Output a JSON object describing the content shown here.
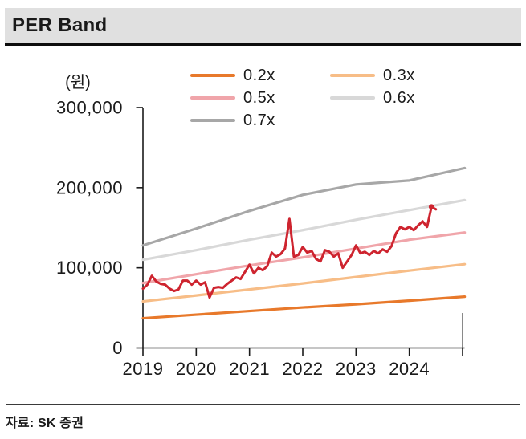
{
  "header": {
    "title": "PER Band"
  },
  "footer": {
    "source": "자료: SK 증권"
  },
  "chart_data": {
    "type": "line",
    "title": "PER Band",
    "unit_label": "(원)",
    "xlabel": "",
    "ylabel": "(원)",
    "ylim": [
      0,
      300000
    ],
    "xlim": [
      2019,
      2025
    ],
    "grid": false,
    "legend_position": "top-center",
    "y_ticks": [
      0,
      100000,
      200000,
      300000
    ],
    "y_tick_labels": [
      "0",
      "100,000",
      "200,000",
      "300,000"
    ],
    "x_ticks": [
      2019,
      2020,
      2021,
      2022,
      2023,
      2024,
      2025
    ],
    "x_tick_labels": [
      "2019",
      "2020",
      "2021",
      "2022",
      "2023",
      "2024",
      ""
    ],
    "band_x": [
      2019,
      2020,
      2021,
      2022,
      2023,
      2024,
      2025.04
    ],
    "bands": [
      {
        "name": "0.2x",
        "color": "#E8792B",
        "values": [
          37000,
          41500,
          46000,
          50500,
          54500,
          59000,
          64000
        ]
      },
      {
        "name": "0.3x",
        "color": "#F7BD87",
        "values": [
          58000,
          65500,
          73000,
          80500,
          88500,
          96500,
          104500
        ]
      },
      {
        "name": "0.5x",
        "color": "#F0A5AA",
        "values": [
          81000,
          92000,
          103000,
          113000,
          124000,
          135000,
          144000
        ]
      },
      {
        "name": "0.6x",
        "color": "#D8D8D8",
        "values": [
          110000,
          122000,
          135000,
          147000,
          160000,
          172000,
          184500
        ]
      },
      {
        "name": "0.7x",
        "color": "#A7A7A7",
        "values": [
          128000,
          149000,
          171000,
          191000,
          204000,
          209000,
          224500
        ]
      }
    ],
    "price_series": {
      "name": "price",
      "color": "#CE242F",
      "x_start": 2019,
      "x_step": 0.0833333,
      "marker_index": 65,
      "values": [
        74000,
        79000,
        90000,
        83000,
        80000,
        79000,
        74000,
        71000,
        73000,
        84000,
        84000,
        79000,
        84000,
        79000,
        82000,
        63000,
        75000,
        76000,
        75000,
        80000,
        84000,
        88000,
        86000,
        95000,
        104000,
        93000,
        100000,
        97000,
        102000,
        119000,
        114000,
        117000,
        124000,
        161000,
        114000,
        116000,
        126000,
        119000,
        121000,
        111000,
        108000,
        122000,
        120000,
        114000,
        118000,
        100000,
        108000,
        116000,
        128000,
        118000,
        120000,
        116000,
        121000,
        118000,
        123000,
        120000,
        127000,
        143000,
        151000,
        148000,
        151000,
        147000,
        153000,
        158000,
        151000,
        176000,
        173000
      ]
    }
  }
}
